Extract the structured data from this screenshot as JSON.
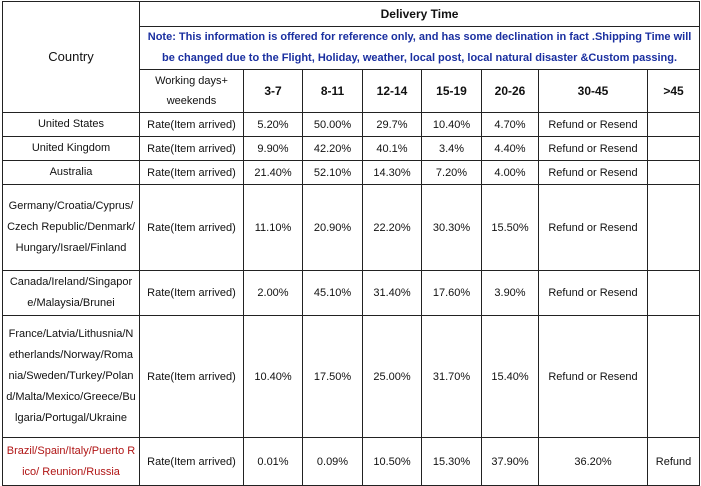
{
  "table": {
    "header": {
      "country": "Country",
      "delivery_time": "Delivery Time",
      "note": "Note: This information is offered for reference only, and has some declination in fact .Shipping Time will be changed due to the Flight, Holiday, weather, local post, local natural disaster &Custom passing.",
      "columns": [
        "Working days+ weekends",
        "3-7",
        "8-11",
        "12-14",
        "15-19",
        "20-26",
        "30-45",
        ">45"
      ]
    },
    "rows": [
      [
        "United States",
        "Rate(Item arrived)",
        "5.20%",
        "50.00%",
        "29.7%",
        "10.40%",
        "4.70%",
        "Refund or Resend"
      ],
      [
        "United Kingdom",
        "Rate(Item arrived)",
        "9.90%",
        "42.20%",
        "40.1%",
        "3.4%",
        "4.40%",
        "Refund or Resend"
      ],
      [
        "Australia",
        "Rate(Item arrived)",
        "21.40%",
        "52.10%",
        "14.30%",
        "7.20%",
        "4.00%",
        "Refund or Resend"
      ],
      [
        "Germany/Croatia/Cyprus/Czech Republic/Denmark/Hungary/Israel/Finland",
        "Rate(Item arrived)",
        "11.10%",
        "20.90%",
        "22.20%",
        "30.30%",
        "15.50%",
        "Refund or Resend"
      ],
      [
        "Canada/Ireland/Singapore/Malaysia/Brunei",
        "Rate(Item arrived)",
        "2.00%",
        "45.10%",
        "31.40%",
        "17.60%",
        "3.90%",
        "Refund or Resend"
      ],
      [
        "France/Latvia/Lithusnia/Netherlands/Norway/Romania/Sweden/Turkey/Poland/Malta/Mexico/Greece/Bulgaria/Portugal/Ukraine",
        "Rate(Item arrived)",
        "10.40%",
        "17.50%",
        "25.00%",
        "31.70%",
        "15.40%",
        "Refund or Resend"
      ],
      [
        "Brazil/Spain/Italy/Puerto Rico/ Reunion/Russia",
        "Rate(Item arrived)",
        "0.01%",
        "0.09%",
        "10.50%",
        "15.30%",
        "37.90%",
        "36.20%",
        "Refund"
      ]
    ]
  }
}
